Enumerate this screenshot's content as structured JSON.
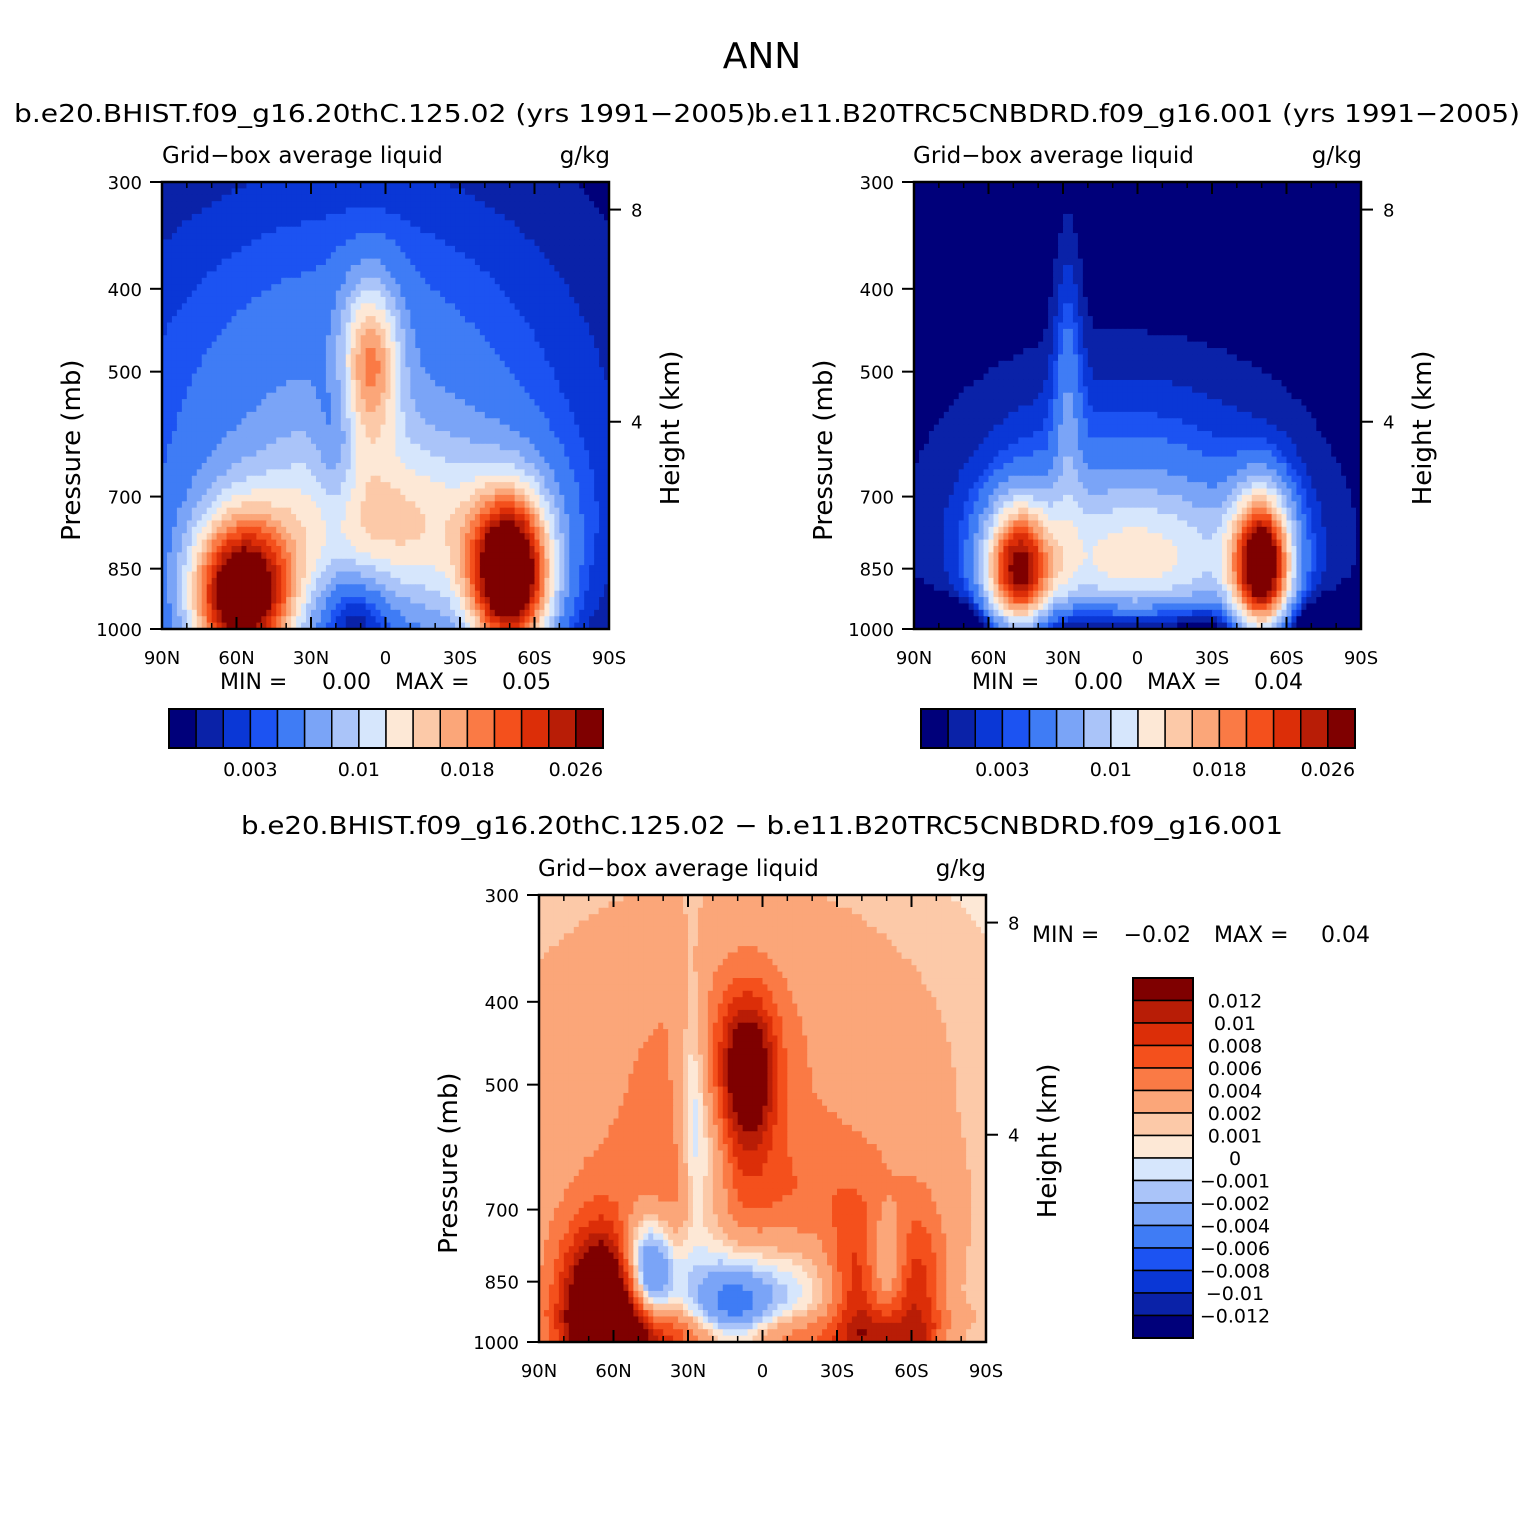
{
  "page_title": "ANN",
  "colors": {
    "cool": [
      "#00007a",
      "#0a22a8",
      "#0a37d6",
      "#1c53f2",
      "#3f7cf5",
      "#7aa4f7",
      "#aac4f9",
      "#d6e6fc"
    ],
    "warm": [
      "#fde8d6",
      "#fcc9a8",
      "#fba679",
      "#fa7a45",
      "#f4501c",
      "#dc2e08",
      "#b81d06",
      "#7f0000"
    ]
  },
  "chart_data": [
    {
      "type": "contour",
      "title": "b.e20.BHIST.f09_g16.20thC.125.02 (yrs 1991-2005)",
      "variable": "Grid-box average liquid",
      "units": "g/kg",
      "xlabel": "",
      "ylabel": "Pressure (mb)",
      "y2label": "Height (km)",
      "x_ticks": [
        "90N",
        "60N",
        "30N",
        "0",
        "30S",
        "60S",
        "90S"
      ],
      "y_ticks": [
        300,
        400,
        500,
        700,
        850,
        1000
      ],
      "y2_ticks": [
        8,
        4
      ],
      "ylim": [
        300,
        1000
      ],
      "xlim": [
        90,
        -90
      ],
      "min_label": "MIN =",
      "min_value": "0.00",
      "max_label": "MAX =",
      "max_value": "0.05",
      "min": 0.0,
      "max": 0.05,
      "colorbar": {
        "orientation": "horizontal",
        "levels": [
          0.001,
          0.002,
          0.003,
          0.004,
          0.006,
          0.008,
          0.01,
          0.012,
          0.014,
          0.016,
          0.018,
          0.02,
          0.022,
          0.024,
          0.026
        ],
        "tick_labels": [
          "0.003",
          "0.01",
          "0.018",
          "0.026"
        ]
      }
    },
    {
      "type": "contour",
      "title": "b.e11.B20TRC5CNBDRD.f09_g16.001 (yrs 1991-2005)",
      "variable": "Grid-box average liquid",
      "units": "g/kg",
      "xlabel": "",
      "ylabel": "Pressure (mb)",
      "y2label": "Height (km)",
      "x_ticks": [
        "90N",
        "60N",
        "30N",
        "0",
        "30S",
        "60S",
        "90S"
      ],
      "y_ticks": [
        300,
        400,
        500,
        700,
        850,
        1000
      ],
      "y2_ticks": [
        8,
        4
      ],
      "ylim": [
        300,
        1000
      ],
      "xlim": [
        90,
        -90
      ],
      "min_label": "MIN =",
      "min_value": "0.00",
      "max_label": "MAX =",
      "max_value": "0.04",
      "min": 0.0,
      "max": 0.04,
      "colorbar": {
        "orientation": "horizontal",
        "levels": [
          0.001,
          0.002,
          0.003,
          0.004,
          0.006,
          0.008,
          0.01,
          0.012,
          0.014,
          0.016,
          0.018,
          0.02,
          0.022,
          0.024,
          0.026
        ],
        "tick_labels": [
          "0.003",
          "0.01",
          "0.018",
          "0.026"
        ]
      }
    },
    {
      "type": "contour",
      "title": "b.e20.BHIST.f09_g16.20thC.125.02 - b.e11.B20TRC5CNBDRD.f09_g16.001",
      "variable": "Grid-box average liquid",
      "units": "g/kg",
      "xlabel": "",
      "ylabel": "Pressure (mb)",
      "y2label": "Height (km)",
      "x_ticks": [
        "90N",
        "60N",
        "30N",
        "0",
        "30S",
        "60S",
        "90S"
      ],
      "y_ticks": [
        300,
        400,
        500,
        700,
        850,
        1000
      ],
      "y2_ticks": [
        8,
        4
      ],
      "ylim": [
        300,
        1000
      ],
      "xlim": [
        90,
        -90
      ],
      "min_label": "MIN =",
      "min_value": "-0.02",
      "max_label": "MAX =",
      "max_value": "0.04",
      "min": -0.02,
      "max": 0.04,
      "colorbar": {
        "orientation": "vertical",
        "tick_labels": [
          "0.012",
          "0.01",
          "0.008",
          "0.006",
          "0.004",
          "0.002",
          "0.001",
          "0",
          "-0.001",
          "-0.002",
          "-0.004",
          "-0.006",
          "-0.008",
          "-0.01",
          "-0.012"
        ]
      }
    }
  ]
}
